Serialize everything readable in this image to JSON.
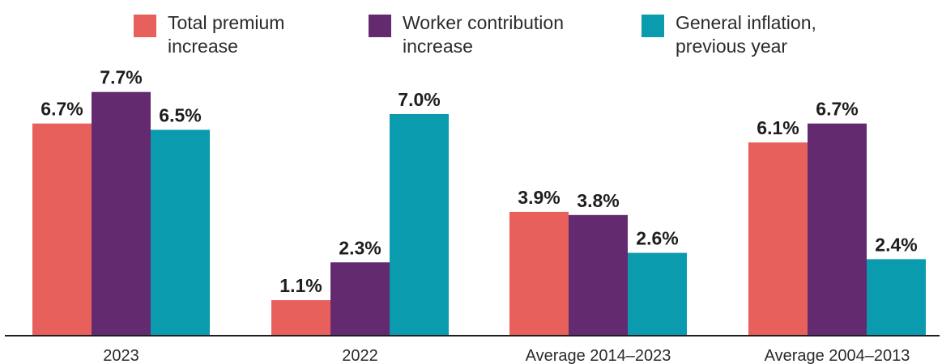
{
  "legend": {
    "items": [
      {
        "label": "Total premium\nincrease",
        "color": "#E8605B"
      },
      {
        "label": "Worker contribution\nincrease",
        "color": "#632A70"
      },
      {
        "label": "General inflation,\nprevious year",
        "color": "#0A9BAF"
      }
    ]
  },
  "chart_data": {
    "type": "bar",
    "title": "",
    "xlabel": "",
    "ylabel": "",
    "categories": [
      "2023",
      "2022",
      "Average 2014–2023",
      "Average 2004–2013"
    ],
    "series": [
      {
        "name": "Total premium increase",
        "color": "#E8605B",
        "values": [
          6.7,
          1.1,
          3.9,
          6.1
        ],
        "labels": [
          "6.7%",
          "1.1%",
          "3.9%",
          "6.1%"
        ]
      },
      {
        "name": "Worker contribution increase",
        "color": "#632A70",
        "values": [
          7.7,
          2.3,
          3.8,
          6.7
        ],
        "labels": [
          "7.7%",
          "2.3%",
          "3.8%",
          "6.7%"
        ]
      },
      {
        "name": "General inflation, previous year",
        "color": "#0A9BAF",
        "values": [
          6.5,
          7.0,
          2.6,
          2.4
        ],
        "labels": [
          "6.5%",
          "7.0%",
          "2.6%",
          "2.4%"
        ]
      }
    ],
    "ylim": [
      0,
      8
    ],
    "grid": false,
    "legend_position": "top"
  }
}
